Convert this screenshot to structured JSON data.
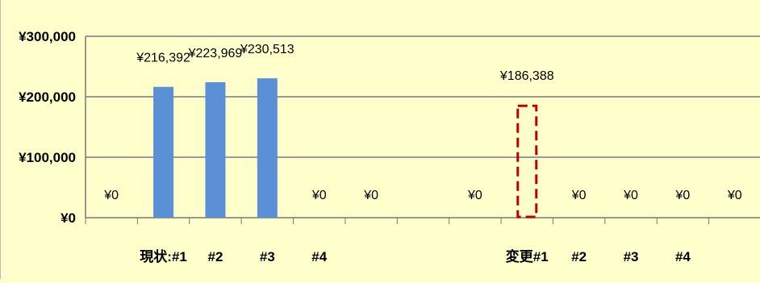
{
  "chart_data": {
    "type": "bar",
    "categories": [
      "",
      "現状:#1",
      "#2",
      "#3",
      "#4",
      "",
      "",
      "",
      "変更#1",
      "#2",
      "#3",
      "#4",
      ""
    ],
    "series": [
      {
        "values": [
          0,
          216392,
          223969,
          230513,
          0,
          0,
          0,
          0,
          186388,
          0,
          0,
          0,
          0
        ],
        "data_labels": [
          "¥0",
          "¥216,392",
          "¥223,969",
          "¥230,513",
          "¥0",
          "¥0",
          "",
          "¥0",
          "¥186,388",
          "¥0",
          "¥0",
          "¥0",
          "¥0"
        ]
      }
    ],
    "bar_styles": [
      "none",
      "solid",
      "solid",
      "solid",
      "none",
      "none",
      "none",
      "none",
      "dashed",
      "none",
      "none",
      "none",
      "none"
    ],
    "ylim": [
      0,
      300000
    ],
    "yticks": [
      0,
      100000,
      200000,
      300000
    ],
    "ytick_labels": [
      "¥0",
      "¥100,000",
      "¥200,000",
      "¥300,000"
    ],
    "grid": true,
    "legend": "none",
    "title": "",
    "xlabel": "",
    "ylabel": "",
    "colors": {
      "background": "#ffffcc",
      "bar_fill": "#5b8fd6",
      "dashed_bar_stroke": "#c00000",
      "gridline": "#999999",
      "axis": "#777777"
    }
  }
}
